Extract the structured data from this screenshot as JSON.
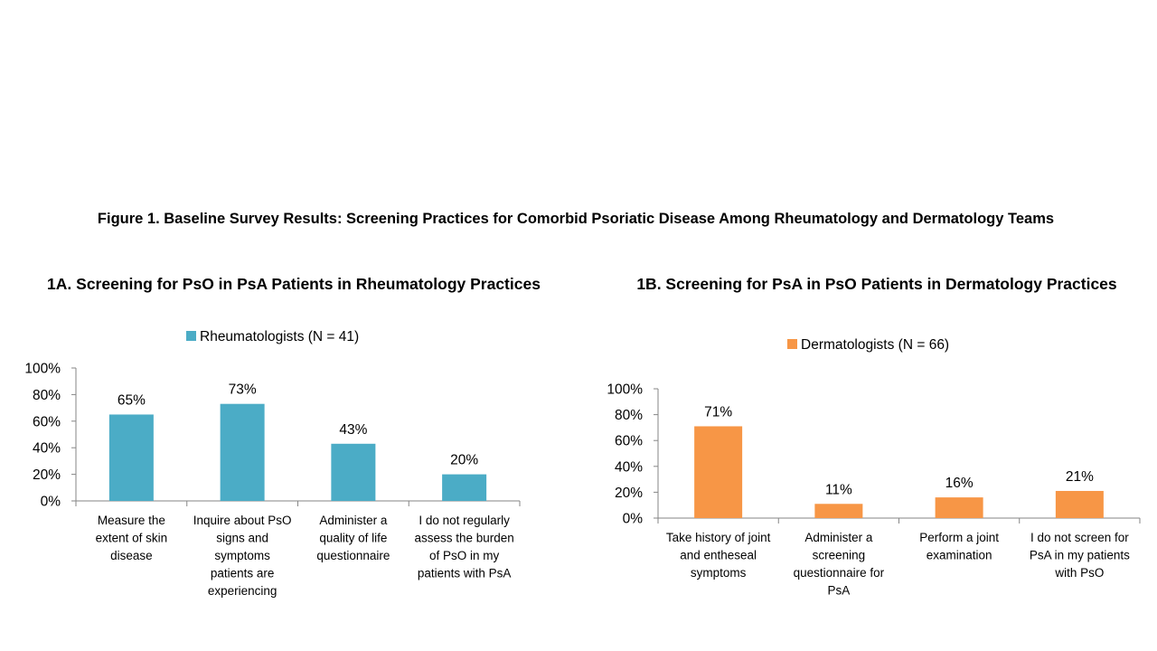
{
  "figure_title": "Figure 1. Baseline Survey Results: Screening Practices for Comorbid Psoriatic Disease Among Rheumatology and Dermatology Teams",
  "chart_data": [
    {
      "id": "A",
      "type": "bar",
      "title": "1A. Screening for PsO in PsA Patients in Rheumatology Practices",
      "legend": "Rheumatologists (N = 41)",
      "color": "#4BACC6",
      "categories": [
        [
          "Measure the",
          "extent of skin",
          "disease"
        ],
        [
          "Inquire about PsO",
          "signs and",
          "symptoms",
          "patients are",
          "experiencing"
        ],
        [
          "Administer a",
          "quality of life",
          "questionnaire"
        ],
        [
          "I do not regularly",
          "assess the burden",
          "of PsO in my",
          "patients with PsA"
        ]
      ],
      "values": [
        65,
        73,
        43,
        20
      ],
      "value_labels": [
        "65%",
        "73%",
        "43%",
        "20%"
      ],
      "yticks": [
        "0%",
        "20%",
        "40%",
        "60%",
        "80%",
        "100%"
      ],
      "ylim": [
        0,
        100
      ]
    },
    {
      "id": "B",
      "type": "bar",
      "title": "1B. Screening for PsA in PsO Patients in Dermatology Practices",
      "legend": "Dermatologists (N = 66)",
      "color": "#F79646",
      "categories": [
        [
          "Take history of joint",
          "and entheseal",
          "symptoms"
        ],
        [
          "Administer a",
          "screening",
          "questionnaire for",
          "PsA"
        ],
        [
          "Perform a joint",
          "examination"
        ],
        [
          "I do not screen for",
          "PsA in my patients",
          "with PsO"
        ]
      ],
      "values": [
        71,
        11,
        16,
        21
      ],
      "value_labels": [
        "71%",
        "11%",
        "16%",
        "21%"
      ],
      "yticks": [
        "0%",
        "20%",
        "40%",
        "60%",
        "80%",
        "100%"
      ],
      "ylim": [
        0,
        100
      ]
    }
  ]
}
